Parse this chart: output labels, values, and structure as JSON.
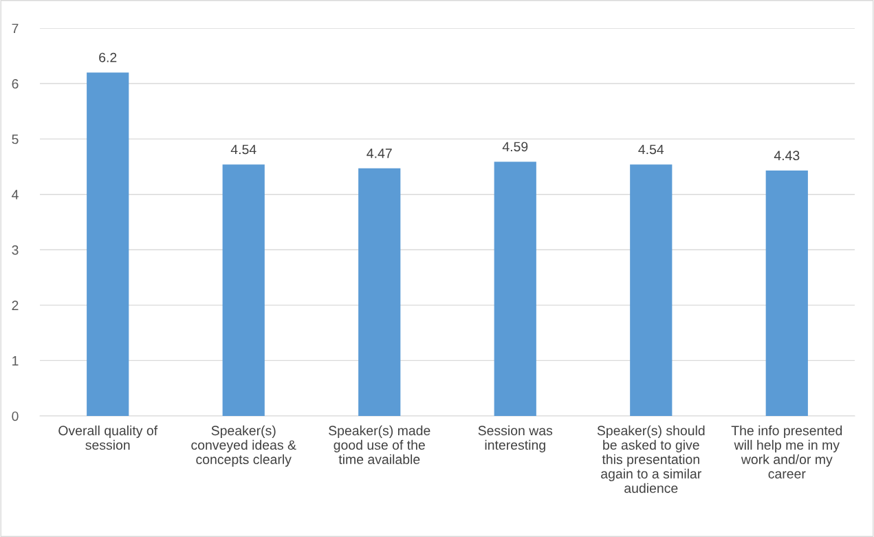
{
  "chart_data": {
    "type": "bar",
    "categories": [
      "Overall quality of\nsession",
      "Speaker(s)\nconveyed ideas &\nconcepts clearly",
      "Speaker(s) made\ngood use of the\ntime available",
      "Session was\ninteresting",
      "Speaker(s) should\nbe asked to give\nthis presentation\nagain to a similar\naudience",
      "The info presented\nwill help me in my\nwork and/or my\ncareer"
    ],
    "values": [
      6.2,
      4.54,
      4.47,
      4.59,
      4.54,
      4.43
    ],
    "color": "#5b9bd5",
    "ylim": [
      0,
      7
    ],
    "yticks": [
      0,
      1,
      2,
      3,
      4,
      5,
      6,
      7
    ],
    "grid": "y",
    "data_labels": true
  }
}
